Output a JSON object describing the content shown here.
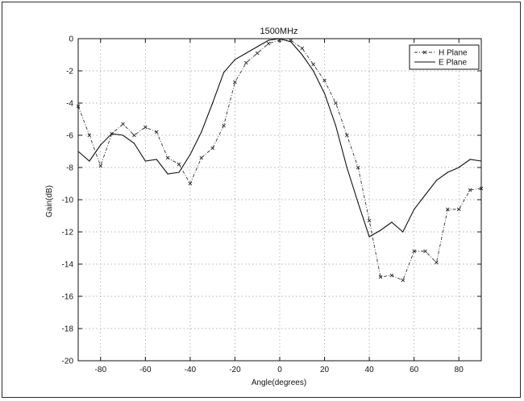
{
  "chart_data": {
    "type": "line",
    "title": "1500MHz",
    "xlabel": "Angle(degrees)",
    "ylabel": "Gain(dB)",
    "xlim": [
      -90,
      90
    ],
    "ylim": [
      -20,
      0
    ],
    "xticks": [
      -80,
      -60,
      -40,
      -20,
      0,
      20,
      40,
      60,
      80
    ],
    "yticks": [
      0,
      -2,
      -4,
      -6,
      -8,
      -10,
      -12,
      -14,
      -16,
      -18,
      -20
    ],
    "grid": true,
    "legend_position": "top-right",
    "series": [
      {
        "name": "H Plane",
        "style": "dash-dot with x markers",
        "color": "#333333",
        "x": [
          -90,
          -85,
          -80,
          -75,
          -70,
          -65,
          -60,
          -55,
          -50,
          -45,
          -40,
          -35,
          -30,
          -25,
          -20,
          -15,
          -10,
          -5,
          0,
          5,
          10,
          15,
          20,
          25,
          30,
          35,
          40,
          45,
          50,
          55,
          60,
          65,
          70,
          75,
          80,
          85,
          90
        ],
        "values": [
          -4.2,
          -6.0,
          -7.9,
          -5.9,
          -5.3,
          -6.0,
          -5.5,
          -5.8,
          -7.4,
          -7.8,
          -9.0,
          -7.4,
          -6.8,
          -5.4,
          -2.7,
          -1.5,
          -0.9,
          -0.3,
          -0.1,
          -0.1,
          -0.6,
          -1.6,
          -2.6,
          -4.0,
          -6.0,
          -8.0,
          -11.3,
          -14.8,
          -14.7,
          -15.0,
          -13.2,
          -13.2,
          -13.9,
          -10.6,
          -10.6,
          -9.4,
          -9.3
        ]
      },
      {
        "name": "E Plane",
        "style": "solid",
        "color": "#111111",
        "x": [
          -90,
          -85,
          -80,
          -75,
          -70,
          -65,
          -60,
          -55,
          -50,
          -45,
          -40,
          -35,
          -30,
          -25,
          -20,
          -15,
          -10,
          -5,
          0,
          5,
          10,
          15,
          20,
          25,
          30,
          35,
          40,
          45,
          50,
          55,
          60,
          65,
          70,
          75,
          80,
          85,
          90
        ],
        "values": [
          -7.0,
          -7.6,
          -6.6,
          -5.9,
          -6.0,
          -6.5,
          -7.6,
          -7.5,
          -8.4,
          -8.3,
          -7.2,
          -5.8,
          -4.0,
          -2.1,
          -1.3,
          -0.9,
          -0.5,
          -0.1,
          0.0,
          -0.2,
          -1.0,
          -2.0,
          -3.4,
          -5.4,
          -8.0,
          -10.2,
          -12.3,
          -11.9,
          -11.4,
          -12.0,
          -10.6,
          -9.7,
          -8.8,
          -8.3,
          -8.0,
          -7.5,
          -7.6
        ]
      }
    ]
  }
}
